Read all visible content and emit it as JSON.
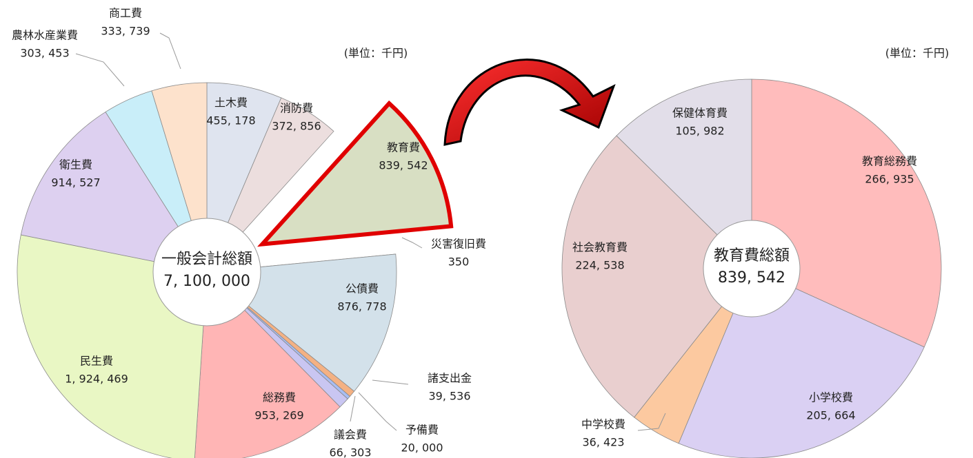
{
  "chart_data": [
    {
      "type": "pie",
      "units": "(単位：千円)",
      "center_title": "一般会計総額",
      "total": 7100000,
      "total_label": "7, 100, 000",
      "categories": [
        "土木費",
        "消防費",
        "教育費",
        "災害復旧費",
        "公債費",
        "諸支出金",
        "予備費",
        "議会費",
        "総務費",
        "民生費",
        "衛生費",
        "農林水産業費",
        "商工費"
      ],
      "values": [
        455178,
        372856,
        839542,
        350,
        876778,
        39536,
        20000,
        66303,
        953269,
        1924469,
        914527,
        303453,
        333739
      ],
      "value_labels": [
        "455, 178",
        "372, 856",
        "839, 542",
        "350",
        "876, 778",
        "39, 536",
        "20, 000",
        "66, 303",
        "953, 269",
        "1, 924, 469",
        "914, 527",
        "303, 453",
        "333, 739"
      ],
      "colors": [
        "#dfe4ef",
        "#ecdede",
        "#d8dfc3",
        "#f0d0d0",
        "#d3e1ea",
        "#f4b183",
        "#a8bdf2",
        "#c9c6f2",
        "#ffb5b5",
        "#e9f7c4",
        "#ddd0f0",
        "#c9eef9",
        "#fde2cc"
      ],
      "explode_index": 2,
      "highlight_color": "#e00000"
    },
    {
      "type": "pie",
      "units": "(単位：千円)",
      "center_title": "教育費総額",
      "total": 839542,
      "total_label": "839, 542",
      "categories": [
        "教育総務費",
        "小学校費",
        "中学校費",
        "社会教育費",
        "保健体育費"
      ],
      "values": [
        266935,
        205664,
        36423,
        224538,
        105982
      ],
      "value_labels": [
        "266, 935",
        "205, 664",
        "36, 423",
        "224, 538",
        "105, 982"
      ],
      "colors": [
        "#ffbcbc",
        "#dad0f3",
        "#fcc9a0",
        "#e9cfcf",
        "#e2dee9"
      ]
    }
  ]
}
